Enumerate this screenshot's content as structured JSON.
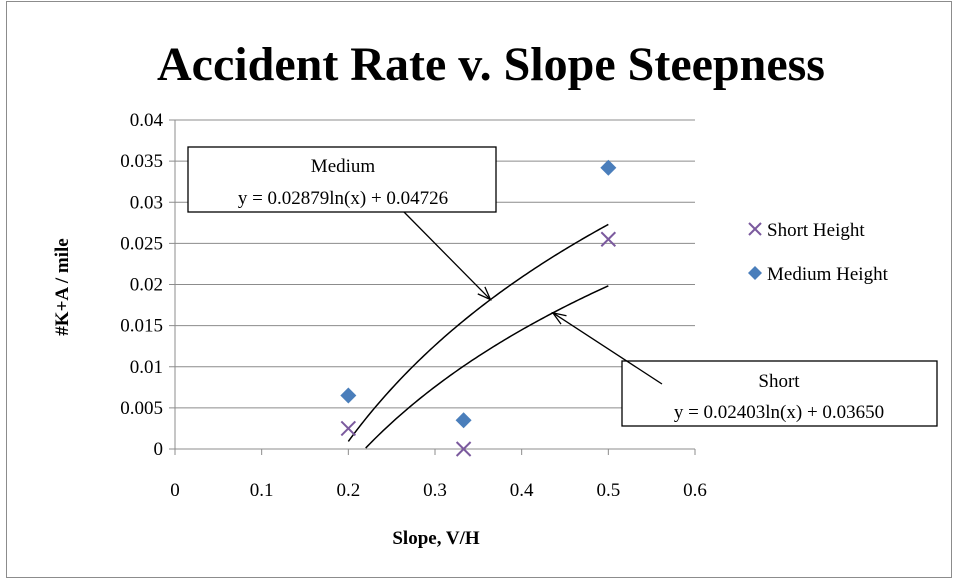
{
  "chart_data": {
    "type": "scatter",
    "title": "Accident Rate v. Slope Steepness",
    "xlabel": "Slope, V/H",
    "ylabel": "#K+A / mile",
    "xlim": [
      0,
      0.6
    ],
    "ylim": [
      0,
      0.04
    ],
    "x_ticks": [
      "0",
      "0.1",
      "0.2",
      "0.3",
      "0.4",
      "0.5",
      "0.6"
    ],
    "y_ticks": [
      "0",
      "0.005",
      "0.01",
      "0.015",
      "0.02",
      "0.025",
      "0.03",
      "0.035",
      "0.04"
    ],
    "grid": "horizontal",
    "legend_position": "right",
    "series": [
      {
        "name": "Short Height",
        "marker": "x",
        "color": "#7b5a9e",
        "x": [
          0.2,
          0.333,
          0.5
        ],
        "y": [
          0.0025,
          0.0,
          0.0255
        ]
      },
      {
        "name": "Medium Height",
        "marker": "diamond",
        "color": "#4a7ebb",
        "x": [
          0.2,
          0.333,
          0.5
        ],
        "y": [
          0.0065,
          0.0035,
          0.0342
        ]
      }
    ],
    "trendlines": [
      {
        "label": "Medium",
        "equation": "y = 0.02879ln(x) + 0.04726",
        "a": 0.02879,
        "b": 0.04726,
        "xrange": [
          0.2,
          0.5
        ]
      },
      {
        "label": "Short",
        "equation": "y = 0.02403ln(x) + 0.03650",
        "a": 0.02403,
        "b": 0.0365,
        "xrange": [
          0.2,
          0.5
        ]
      }
    ]
  }
}
